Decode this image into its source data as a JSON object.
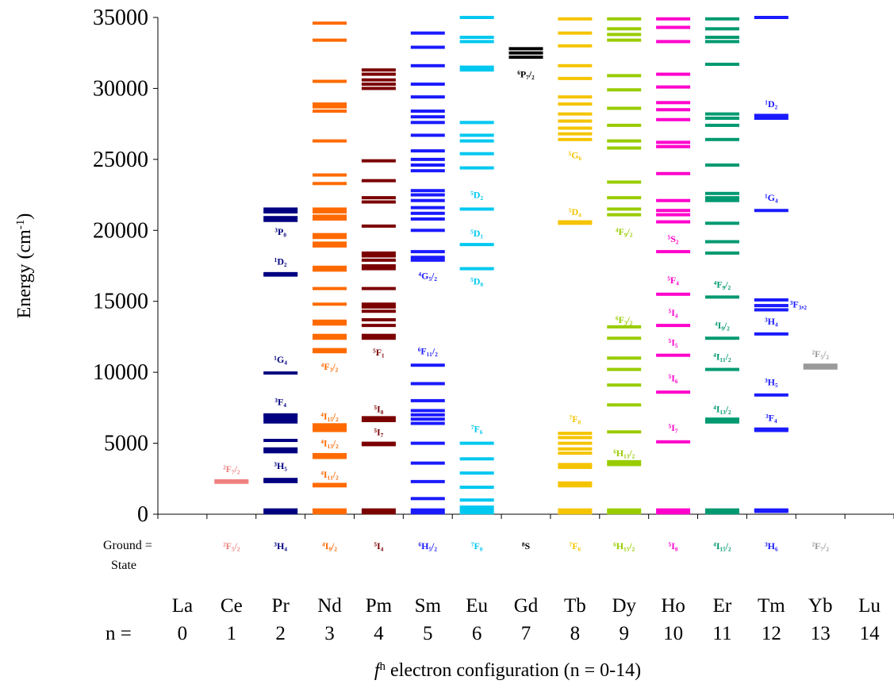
{
  "chart_data": {
    "type": "energy-level-diagram",
    "ylabel": "Energy (cm",
    "ylabel_sup": "-1",
    "ylabel_close": ")",
    "xlabel_f": "f",
    "xlabel_sup": "n",
    "xlabel_rest": " electron configuration (n = 0-14)",
    "ylim": [
      0,
      35000
    ],
    "yticks": [
      "0",
      "5000",
      "10000",
      "15000",
      "20000",
      "25000",
      "30000",
      "35000"
    ],
    "ground_state_title_1": "Ground =",
    "ground_state_title_2": "State",
    "n_prefix": "n =",
    "grid": false,
    "elements": [
      {
        "symbol": "La",
        "n": "0",
        "color": "#000000",
        "ground": "",
        "levels": [],
        "terms": []
      },
      {
        "symbol": "Ce",
        "n": "1",
        "color": "#f08080",
        "ground": "²F₅/₂",
        "levels": [
          2250,
          2350
        ],
        "terms": [
          {
            "text": "²F₇/₂",
            "y": 3200
          }
        ]
      },
      {
        "symbol": "Pr",
        "n": "2",
        "color": "#000080",
        "ground": "³H₄",
        "levels": [
          100,
          300,
          2300,
          2450,
          4400,
          4600,
          5200,
          6500,
          6700,
          6900,
          7000,
          9950,
          16850,
          16950,
          20700,
          20900,
          21300,
          21500
        ],
        "terms": [
          {
            "text": "³P₀",
            "y": 19900
          },
          {
            "text": "¹D₂",
            "y": 17800
          },
          {
            "text": "¹G₄",
            "y": 10900
          },
          {
            "text": "³F₄",
            "y": 7900
          },
          {
            "text": "³H₅",
            "y": 3400
          }
        ]
      },
      {
        "symbol": "Nd",
        "n": "3",
        "color": "#ff6a00",
        "ground": "⁴I₉/₂",
        "levels": [
          100,
          300,
          2000,
          2100,
          4000,
          4200,
          5900,
          6100,
          6300,
          11450,
          11600,
          12400,
          12600,
          13400,
          13600,
          14800,
          15900,
          17200,
          17400,
          18900,
          19100,
          19500,
          19700,
          20800,
          21000,
          21300,
          21500,
          23300,
          23900,
          26300,
          28400,
          28700,
          28900,
          30500,
          33400,
          34600
        ],
        "terms": [
          {
            "text": "⁴F₃/₂",
            "y": 10400
          },
          {
            "text": "⁴I₁₅/₂",
            "y": 6900
          },
          {
            "text": "⁴I₁₃/₂",
            "y": 5000
          },
          {
            "text": "⁴I₁₁/₂",
            "y": 2800
          }
        ]
      },
      {
        "symbol": "Pm",
        "n": "4",
        "color": "#7b0000",
        "ground": "⁵I₄",
        "levels": [
          100,
          300,
          4900,
          5000,
          6600,
          6800,
          12400,
          12600,
          13300,
          13700,
          14300,
          14600,
          14800,
          15900,
          17300,
          17500,
          17900,
          18200,
          18400,
          20300,
          22000,
          22300,
          23500,
          24900,
          30000,
          30300,
          30600,
          31000,
          31300
        ],
        "terms": [
          {
            "text": "⁵F₁",
            "y": 11400
          },
          {
            "text": "⁵I₈",
            "y": 7400
          },
          {
            "text": "⁵I₇",
            "y": 5800
          }
        ]
      },
      {
        "symbol": "Sm",
        "n": "5",
        "color": "#1a1aff",
        "ground": "⁶H₅/₂",
        "levels": [
          100,
          300,
          1100,
          2300,
          3600,
          5000,
          6400,
          6700,
          7000,
          7300,
          8000,
          9200,
          10500,
          17900,
          18100,
          18500,
          20000,
          20800,
          21200,
          21600,
          22100,
          22500,
          22800,
          24200,
          24600,
          25000,
          25600,
          26700,
          27600,
          28000,
          28400,
          29400,
          30300,
          31600,
          32900,
          33900
        ],
        "terms": [
          {
            "text": "⁶F₁₁/₂",
            "y": 11500
          },
          {
            "text": "⁴G₅/₂",
            "y": 16800
          }
        ]
      },
      {
        "symbol": "Eu",
        "n": "6",
        "color": "#00c8f0",
        "ground": "⁷F₀",
        "levels": [
          100,
          300,
          500,
          1000,
          1900,
          2900,
          3900,
          5000,
          17300,
          19000,
          21500,
          24400,
          25400,
          26300,
          26700,
          27600,
          31300,
          31500,
          33300,
          33600,
          35000
        ],
        "terms": [
          {
            "text": "⁷F₆",
            "y": 6000
          },
          {
            "text": "⁵D₀",
            "y": 16400
          },
          {
            "text": "⁵D₁",
            "y": 19800
          },
          {
            "text": "⁵D₂",
            "y": 22500
          }
        ]
      },
      {
        "symbol": "Gd",
        "n": "7",
        "color": "#000000",
        "ground": "⁸S",
        "levels": [
          32200,
          32500,
          32800
        ],
        "terms": [
          {
            "text": "⁶P₇/₂",
            "y": 31000
          }
        ]
      },
      {
        "symbol": "Tb",
        "n": "8",
        "color": "#f5c400",
        "ground": "⁷F₆",
        "levels": [
          100,
          300,
          2000,
          2200,
          3300,
          3500,
          4300,
          4600,
          5000,
          5400,
          5700,
          20500,
          20600,
          26400,
          26800,
          27200,
          27700,
          28200,
          28900,
          29400,
          30700,
          31600,
          33000,
          33900,
          34900
        ],
        "terms": [
          {
            "text": "⁷F₀",
            "y": 6700
          },
          {
            "text": "⁵D₄",
            "y": 21300
          },
          {
            "text": "⁵G₆",
            "y": 25300
          }
        ]
      },
      {
        "symbol": "Dy",
        "n": "9",
        "color": "#99cc00",
        "ground": "⁶H₁₅/₂",
        "levels": [
          100,
          300,
          3500,
          3700,
          5800,
          7700,
          9100,
          10200,
          11000,
          12400,
          13200,
          21100,
          21500,
          22300,
          23400,
          25800,
          26300,
          27400,
          28600,
          29900,
          30900,
          33400,
          33800,
          34200,
          34900
        ],
        "terms": [
          {
            "text": "⁶H₁₃/₂",
            "y": 4300
          },
          {
            "text": "⁶F₃/₂",
            "y": 13700
          },
          {
            "text": "⁴F₉/₂",
            "y": 19900
          }
        ]
      },
      {
        "symbol": "Ho",
        "n": "10",
        "color": "#ff00cc",
        "ground": "⁵I₈",
        "levels": [
          100,
          300,
          5100,
          8600,
          11200,
          13300,
          15500,
          18500,
          20600,
          21100,
          21400,
          22100,
          24000,
          25900,
          26200,
          27800,
          28500,
          29000,
          30100,
          31000,
          33300,
          34300,
          34900
        ],
        "terms": [
          {
            "text": "⁵I₇",
            "y": 6100
          },
          {
            "text": "⁵I₆",
            "y": 9600
          },
          {
            "text": "⁵I₅",
            "y": 12100
          },
          {
            "text": "⁵I₄",
            "y": 14200
          },
          {
            "text": "⁵F₄",
            "y": 16500
          },
          {
            "text": "⁵S₂",
            "y": 19400
          }
        ]
      },
      {
        "symbol": "Er",
        "n": "11",
        "color": "#009970",
        "ground": "⁴I₁₅/₂",
        "levels": [
          100,
          300,
          6500,
          6700,
          10200,
          12400,
          15300,
          18400,
          19200,
          20500,
          22100,
          22300,
          22600,
          24600,
          26400,
          27400,
          27900,
          28200,
          31700,
          33300,
          33600,
          34200,
          34900
        ],
        "terms": [
          {
            "text": "⁴I₁₃/₂",
            "y": 7400
          },
          {
            "text": "⁴I₁₁/₂",
            "y": 11100
          },
          {
            "text": "⁴I₉/₂",
            "y": 13300
          },
          {
            "text": "⁴F₉/₂",
            "y": 16200
          }
        ]
      },
      {
        "symbol": "Tm",
        "n": "12",
        "color": "#1a1aff",
        "ground": "³H₆",
        "levels": [
          200,
          300,
          5900,
          6000,
          8400,
          12700,
          14400,
          14700,
          15100,
          21400,
          27900,
          28100,
          35000
        ],
        "terms": [
          {
            "text": "³F₄",
            "y": 6800
          },
          {
            "text": "³H₅",
            "y": 9300
          },
          {
            "text": "³H₄",
            "y": 13600
          },
          {
            "text": "³F₃,₂",
            "y": 14800,
            "side": "right"
          },
          {
            "text": "¹G₄",
            "y": 22300
          },
          {
            "text": "¹D₂",
            "y": 28900
          }
        ]
      },
      {
        "symbol": "Yb",
        "n": "13",
        "color": "#9a9a9a",
        "ground": "²F₇/₂",
        "levels": [
          10300,
          10500
        ],
        "terms": [
          {
            "text": "²F₅/₂",
            "y": 11300
          }
        ]
      },
      {
        "symbol": "Lu",
        "n": "14",
        "color": "#000000",
        "ground": "",
        "levels": [],
        "terms": []
      }
    ]
  }
}
